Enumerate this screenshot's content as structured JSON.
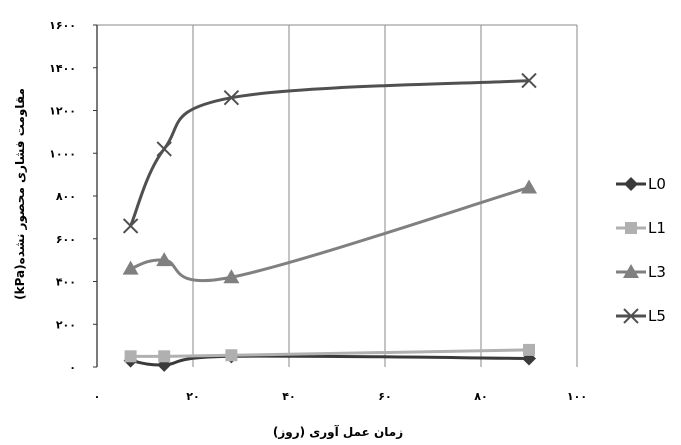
{
  "chart_data": {
    "type": "line",
    "xlabel": "زمان عمل آوری (روز)",
    "ylabel": "مقاومت فشاری محصور نشده(kPa)",
    "xlim": [
      0,
      100
    ],
    "ylim": [
      0,
      1600
    ],
    "xticks": [
      "۰",
      "۲۰",
      "۴۰",
      "۶۰",
      "۸۰",
      "۱۰۰"
    ],
    "yticks": [
      "۰",
      "۲۰۰",
      "۴۰۰",
      "۶۰۰",
      "۸۰۰",
      "۱۰۰۰",
      "۱۲۰۰",
      "۱۴۰۰",
      "۱۶۰۰"
    ],
    "grid": "vertical",
    "legend_position": "right",
    "series": [
      {
        "name": "L0",
        "marker": "diamond",
        "color": "#3a3a3a",
        "x": [
          7,
          14,
          28,
          90
        ],
        "y": [
          30,
          10,
          50,
          40
        ]
      },
      {
        "name": "L1",
        "marker": "square",
        "color": "#b0b0b0",
        "x": [
          7,
          14,
          28,
          90
        ],
        "y": [
          50,
          50,
          55,
          80
        ]
      },
      {
        "name": "L3",
        "marker": "triangle",
        "color": "#808080",
        "x": [
          7,
          14,
          28,
          90
        ],
        "y": [
          460,
          500,
          420,
          840
        ]
      },
      {
        "name": "L5",
        "marker": "x",
        "color": "#505050",
        "x": [
          7,
          14,
          28,
          90
        ],
        "y": [
          660,
          1020,
          1260,
          1340
        ]
      }
    ]
  }
}
